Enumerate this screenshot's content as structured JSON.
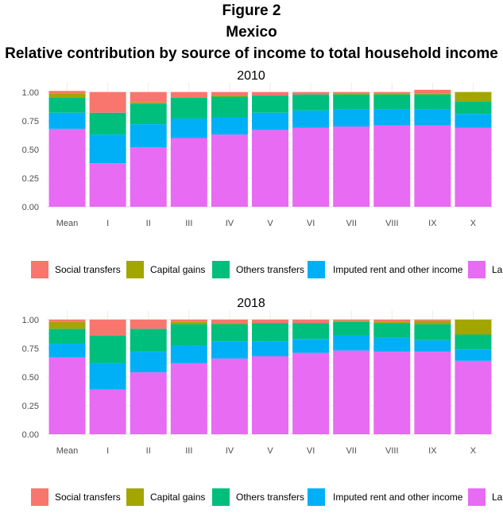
{
  "figure": {
    "label": "Figure 2",
    "country": "Mexico",
    "title": "Relative contribution by source of income to total household income"
  },
  "colors": {
    "Social transfers": "#F8766D",
    "Capital gains": "#A3A500",
    "Others transfers": "#00BF7D",
    "Imputed rent and other income": "#00B0F6",
    "Labour income": "#E76BF3"
  },
  "legend_labels": [
    "Social transfers",
    "Capital gains",
    "Others transfers",
    "Imputed rent and other income",
    "La"
  ],
  "chart_data": [
    {
      "type": "bar",
      "stacked": true,
      "title": "2010",
      "categories": [
        "Mean",
        "I",
        "II",
        "III",
        "IV",
        "V",
        "VI",
        "VII",
        "VIII",
        "IX",
        "X"
      ],
      "yticks": [
        "0.00",
        "0.25",
        "0.50",
        "0.75",
        "1.00"
      ],
      "ylim": [
        0,
        1.04
      ],
      "grid": true,
      "legend_position": "bottom",
      "series": [
        {
          "name": "Labour income",
          "values": [
            0.68,
            0.38,
            0.52,
            0.6,
            0.63,
            0.67,
            0.69,
            0.7,
            0.71,
            0.71,
            0.69
          ]
        },
        {
          "name": "Imputed rent and other income",
          "values": [
            0.14,
            0.25,
            0.2,
            0.17,
            0.15,
            0.15,
            0.15,
            0.15,
            0.14,
            0.14,
            0.12
          ]
        },
        {
          "name": "Others transfers",
          "values": [
            0.13,
            0.19,
            0.18,
            0.18,
            0.18,
            0.15,
            0.14,
            0.13,
            0.13,
            0.13,
            0.11
          ]
        },
        {
          "name": "Capital gains",
          "values": [
            0.04,
            0.0,
            0.01,
            0.0,
            0.01,
            0.0,
            0.0,
            0.01,
            0.01,
            0.01,
            0.08
          ]
        },
        {
          "name": "Social transfers",
          "values": [
            0.02,
            0.18,
            0.09,
            0.05,
            0.03,
            0.03,
            0.02,
            0.01,
            0.01,
            0.03,
            0.0
          ]
        }
      ]
    },
    {
      "type": "bar",
      "stacked": true,
      "title": "2018",
      "categories": [
        "Mean",
        "I",
        "II",
        "III",
        "IV",
        "V",
        "VI",
        "VII",
        "VIII",
        "IX",
        "X"
      ],
      "yticks": [
        "0.00",
        "0.25",
        "0.50",
        "0.75",
        "1.00"
      ],
      "ylim": [
        0,
        1.04
      ],
      "grid": true,
      "legend_position": "bottom",
      "series": [
        {
          "name": "Labour income",
          "values": [
            0.67,
            0.39,
            0.54,
            0.62,
            0.66,
            0.68,
            0.71,
            0.73,
            0.72,
            0.72,
            0.64
          ]
        },
        {
          "name": "Imputed rent and other income",
          "values": [
            0.12,
            0.23,
            0.18,
            0.15,
            0.15,
            0.13,
            0.12,
            0.13,
            0.12,
            0.1,
            0.1
          ]
        },
        {
          "name": "Others transfers",
          "values": [
            0.13,
            0.24,
            0.2,
            0.19,
            0.15,
            0.16,
            0.14,
            0.12,
            0.13,
            0.14,
            0.13
          ]
        },
        {
          "name": "Capital gains",
          "values": [
            0.06,
            0.0,
            0.0,
            0.02,
            0.01,
            0.0,
            0.0,
            0.01,
            0.01,
            0.03,
            0.13
          ]
        },
        {
          "name": "Social transfers",
          "values": [
            0.02,
            0.14,
            0.08,
            0.02,
            0.03,
            0.03,
            0.03,
            0.01,
            0.02,
            0.01,
            0.0
          ]
        }
      ]
    }
  ]
}
